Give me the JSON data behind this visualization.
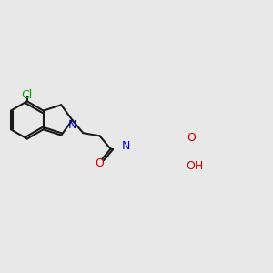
{
  "bg": "#e8e8e8",
  "bc": "#1a1a1a",
  "nc": "#0000dd",
  "oc": "#cc0000",
  "clc": "#00aa00",
  "lw": 1.5,
  "fs": 9.0,
  "xlim": [
    30,
    270
  ],
  "ylim": [
    30,
    270
  ]
}
